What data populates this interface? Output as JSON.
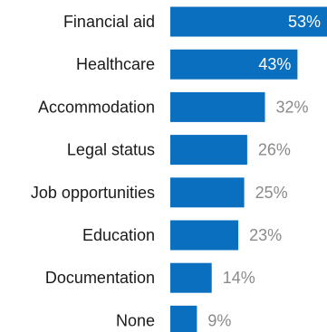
{
  "chart_data": {
    "type": "bar",
    "orientation": "horizontal",
    "categories": [
      "Financial aid",
      "Healthcare",
      "Accommodation",
      "Legal status",
      "Job opportunities",
      "Education",
      "Documentation",
      "None"
    ],
    "values": [
      53,
      43,
      32,
      26,
      25,
      23,
      14,
      9
    ],
    "value_labels": [
      "53%",
      "43%",
      "32%",
      "26%",
      "25%",
      "23%",
      "14%",
      "9%"
    ],
    "unit": "%",
    "xlim": [
      0,
      53
    ],
    "grid": false,
    "legend": "none",
    "title": "",
    "xlabel": "",
    "ylabel": ""
  },
  "colors": {
    "bar": "#0b6fc0",
    "label_inside": "#ffffff",
    "label_outside": "#8a8a8a",
    "category_text": "#1a1a1a",
    "background": "#ffffff"
  }
}
